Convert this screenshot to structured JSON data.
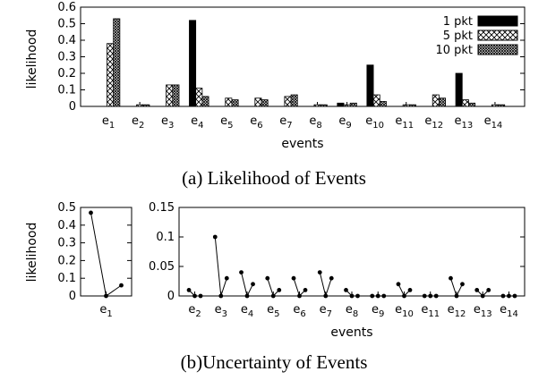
{
  "figure": {
    "caption_a": "(a) Likelihood of Events",
    "caption_b": "(b)Uncertainty of Events"
  },
  "chart_data": [
    {
      "id": "a",
      "type": "bar",
      "ylabel": "likelihood",
      "xlabel": "events",
      "ylim": [
        0,
        0.6
      ],
      "yticks": [
        "0",
        "0.1",
        "0.2",
        "0.3",
        "0.4",
        "0.5",
        "0.6"
      ],
      "categories": [
        "e1",
        "e2",
        "e3",
        "e4",
        "e5",
        "e6",
        "e7",
        "e8",
        "e9",
        "e10",
        "e11",
        "e12",
        "e13",
        "e14"
      ],
      "legend_position": "top-right",
      "series": [
        {
          "name": "1 pkt",
          "pattern": "solid",
          "color": "#000000",
          "values": [
            0,
            0,
            0,
            0.52,
            0,
            0,
            0,
            0,
            0.02,
            0.25,
            0,
            0,
            0.2,
            0
          ]
        },
        {
          "name": "5 pkt",
          "pattern": "cross-hatch",
          "color": "#000000",
          "values": [
            0.38,
            0.01,
            0.13,
            0.11,
            0.05,
            0.05,
            0.06,
            0.01,
            0.01,
            0.07,
            0.01,
            0.07,
            0.04,
            0.01
          ]
        },
        {
          "name": "10 pkt",
          "pattern": "dense-hatch",
          "color": "#000000",
          "values": [
            0.53,
            0.01,
            0.13,
            0.06,
            0.04,
            0.04,
            0.07,
            0.01,
            0.02,
            0.03,
            0.01,
            0.05,
            0.02,
            0.01
          ]
        }
      ]
    },
    {
      "id": "b-left",
      "type": "line",
      "ylabel": "likelihood",
      "ylim": [
        0,
        0.5
      ],
      "yticks": [
        "0",
        "0.1",
        "0.2",
        "0.3",
        "0.4",
        "0.5"
      ],
      "categories": [
        "e1"
      ],
      "series": [
        {
          "values": [
            [
              0.47,
              0,
              0.06
            ]
          ]
        }
      ]
    },
    {
      "id": "b-right",
      "type": "line",
      "xlabel": "events",
      "ylim": [
        0,
        0.15
      ],
      "yticks": [
        "0",
        "0.05",
        "0.1",
        "0.15"
      ],
      "categories": [
        "e2",
        "e3",
        "e4",
        "e5",
        "e6",
        "e7",
        "e8",
        "e9",
        "e10",
        "e11",
        "e12",
        "e13",
        "e14"
      ],
      "series": [
        {
          "values": [
            [
              0.01,
              0,
              0
            ],
            [
              0.1,
              0,
              0.03
            ],
            [
              0.04,
              0,
              0.02
            ],
            [
              0.03,
              0,
              0.01
            ],
            [
              0.03,
              0,
              0.01
            ],
            [
              0.04,
              0,
              0.03
            ],
            [
              0.01,
              0,
              0
            ],
            [
              0,
              0,
              0
            ],
            [
              0.02,
              0,
              0.01
            ],
            [
              0,
              0,
              0
            ],
            [
              0.03,
              0,
              0.02
            ],
            [
              0.01,
              0,
              0.01
            ],
            [
              0,
              0,
              0
            ]
          ]
        }
      ]
    }
  ]
}
